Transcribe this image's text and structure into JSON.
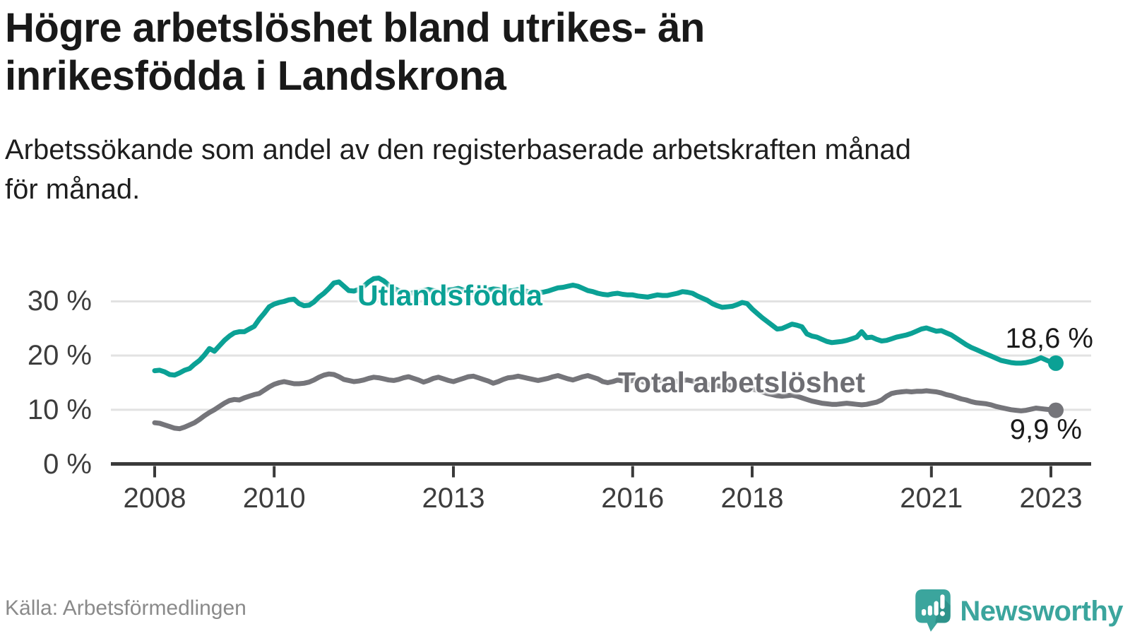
{
  "header": {
    "title_line1": "Högre arbetslöshet bland utrikes- än",
    "title_line2": "inrikesfödda i Landskrona",
    "subtitle_line1": "Arbetssökande som andel av den registerbaserade arbetskraften månad",
    "subtitle_line2": "för månad."
  },
  "footer": {
    "source": "Källa: Arbetsförmedlingen",
    "logo_text": "Newsworthy",
    "logo_color": "#3ba59d",
    "logo_shadow_color": "#2e938b"
  },
  "chart_data": {
    "type": "line",
    "title": "Högre arbetslöshet bland utrikes- än inrikesfödda i Landskrona",
    "subtitle": "Arbetssökande som andel av den registerbaserade arbetskraften månad för månad.",
    "frequency": "monthly",
    "x_start": "2008-01",
    "x_end": "2023-02",
    "x_ticks": [
      2008,
      2010,
      2013,
      2016,
      2018,
      2021,
      2023
    ],
    "y_ticks": [
      {
        "label": "0 %",
        "value": 0
      },
      {
        "label": "10 %",
        "value": 10
      },
      {
        "label": "20 %",
        "value": 20
      },
      {
        "label": "30 %",
        "value": 30
      }
    ],
    "ylim": [
      0,
      36
    ],
    "grid": "horizontal",
    "legend_position": "inline-labels",
    "axis_color": "#3a3a3a",
    "grid_color": "#e2e2e2",
    "series": [
      {
        "name": "Utlandsfödda",
        "color": "#0ba195",
        "label_color": "#0ba195",
        "end_label": "18,6 %",
        "end_value": 18.6,
        "values": [
          17.2,
          17.3,
          17.0,
          16.5,
          16.4,
          16.8,
          17.3,
          17.6,
          18.4,
          19.1,
          20.1,
          21.3,
          20.8,
          21.8,
          22.8,
          23.6,
          24.2,
          24.4,
          24.4,
          24.9,
          25.4,
          26.7,
          27.8,
          29.0,
          29.5,
          29.8,
          30.0,
          30.3,
          30.4,
          29.6,
          29.2,
          29.3,
          29.9,
          30.8,
          31.5,
          32.4,
          33.4,
          33.6,
          32.8,
          32.0,
          31.9,
          32.2,
          32.8,
          33.6,
          34.2,
          34.3,
          33.8,
          33.0,
          32.4,
          32.0,
          31.6,
          31.4,
          31.6,
          31.8,
          32.0,
          32.2,
          32.0,
          31.8,
          31.9,
          32.1,
          32.2,
          32.4,
          32.1,
          31.8,
          31.6,
          31.7,
          31.9,
          32.1,
          32.3,
          32.2,
          32.0,
          31.9,
          32.0,
          32.2,
          32.0,
          31.8,
          31.7,
          31.6,
          31.7,
          31.9,
          32.2,
          32.5,
          32.6,
          32.8,
          33.0,
          32.8,
          32.4,
          32.0,
          31.8,
          31.5,
          31.3,
          31.2,
          31.4,
          31.5,
          31.3,
          31.2,
          31.2,
          31.0,
          30.9,
          30.8,
          31.0,
          31.2,
          31.1,
          31.1,
          31.3,
          31.5,
          31.8,
          31.7,
          31.5,
          31.0,
          30.6,
          30.2,
          29.6,
          29.2,
          28.9,
          29.0,
          29.1,
          29.4,
          29.8,
          29.6,
          28.6,
          27.8,
          27.0,
          26.3,
          25.6,
          24.9,
          25.0,
          25.4,
          25.8,
          25.6,
          25.3,
          24.0,
          23.6,
          23.4,
          23.0,
          22.6,
          22.4,
          22.5,
          22.6,
          22.8,
          23.1,
          23.4,
          24.4,
          23.3,
          23.4,
          23.0,
          22.7,
          22.8,
          23.1,
          23.4,
          23.6,
          23.8,
          24.1,
          24.5,
          24.9,
          25.1,
          24.8,
          24.5,
          24.6,
          24.2,
          23.8,
          23.2,
          22.6,
          22.0,
          21.5,
          21.1,
          20.7,
          20.3,
          19.9,
          19.5,
          19.1,
          18.9,
          18.7,
          18.6,
          18.6,
          18.7,
          18.9,
          19.2,
          19.6,
          19.2,
          18.8,
          18.6
        ]
      },
      {
        "name": "Total arbetslöshet",
        "color": "#75757a",
        "label_color": "#6e6e73",
        "end_label": "9,9 %",
        "end_value": 9.9,
        "values": [
          7.6,
          7.5,
          7.2,
          6.9,
          6.6,
          6.5,
          6.8,
          7.2,
          7.6,
          8.2,
          8.9,
          9.5,
          10.0,
          10.6,
          11.2,
          11.7,
          11.9,
          11.8,
          12.2,
          12.5,
          12.8,
          13.0,
          13.6,
          14.2,
          14.7,
          15.0,
          15.2,
          15.0,
          14.8,
          14.8,
          14.9,
          15.1,
          15.5,
          16.0,
          16.4,
          16.6,
          16.5,
          16.1,
          15.6,
          15.4,
          15.2,
          15.3,
          15.5,
          15.8,
          16.0,
          15.9,
          15.7,
          15.5,
          15.4,
          15.6,
          15.9,
          16.1,
          15.8,
          15.5,
          15.1,
          15.4,
          15.8,
          16.0,
          15.7,
          15.4,
          15.2,
          15.5,
          15.8,
          16.1,
          16.2,
          15.9,
          15.6,
          15.3,
          14.9,
          15.2,
          15.6,
          15.9,
          16.0,
          16.2,
          16.0,
          15.8,
          15.6,
          15.4,
          15.6,
          15.8,
          16.1,
          16.3,
          16.0,
          15.7,
          15.5,
          15.8,
          16.1,
          16.3,
          16.0,
          15.7,
          15.2,
          15.0,
          15.2,
          15.5,
          15.3,
          15.2,
          15.4,
          15.6,
          15.2,
          14.9,
          15.1,
          15.3,
          15.5,
          15.6,
          15.4,
          15.2,
          15.4,
          15.5,
          15.3,
          15.1,
          14.9,
          14.7,
          14.5,
          14.4,
          14.3,
          14.4,
          14.5,
          14.4,
          14.2,
          14.0,
          13.8,
          13.6,
          13.3,
          13.0,
          12.8,
          12.6,
          12.5,
          12.6,
          12.7,
          12.5,
          12.2,
          11.9,
          11.6,
          11.4,
          11.2,
          11.1,
          11.0,
          11.0,
          11.1,
          11.2,
          11.1,
          11.0,
          10.9,
          11.0,
          11.2,
          11.4,
          11.8,
          12.5,
          13.0,
          13.2,
          13.3,
          13.4,
          13.3,
          13.4,
          13.4,
          13.5,
          13.4,
          13.3,
          13.1,
          12.8,
          12.6,
          12.3,
          12.0,
          11.8,
          11.5,
          11.3,
          11.2,
          11.1,
          10.9,
          10.6,
          10.4,
          10.2,
          10.0,
          9.9,
          9.8,
          9.9,
          10.1,
          10.3,
          10.2,
          10.1,
          10.0,
          9.9
        ]
      }
    ]
  }
}
